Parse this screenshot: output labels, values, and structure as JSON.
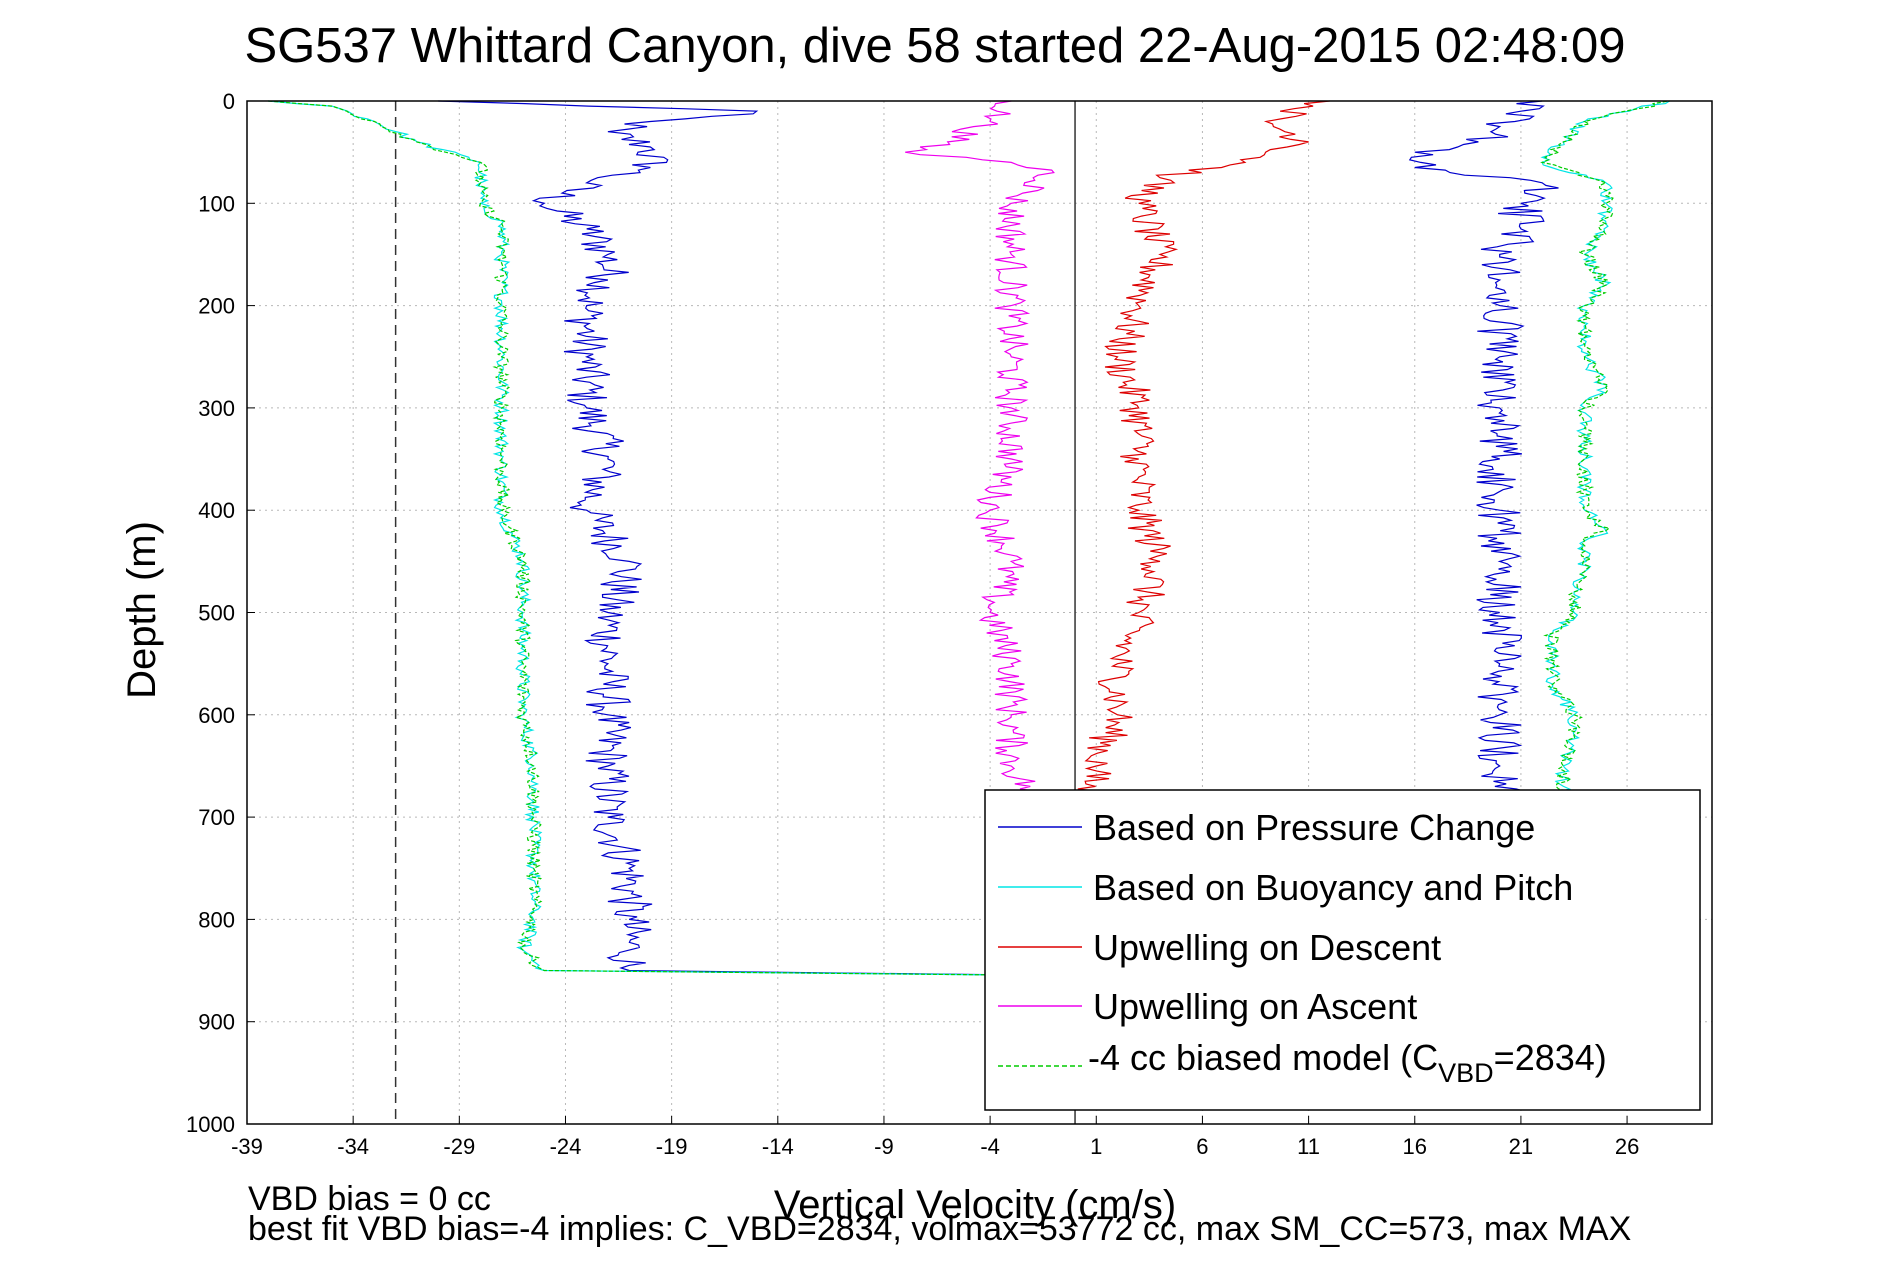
{
  "chart_data": {
    "type": "line",
    "title": "SG537 Whittard Canyon, dive 58 started 22-Aug-2015 02:48:09",
    "xlabel": "Vertical Velocity (cm/s)",
    "ylabel": "Depth (m)",
    "xlim": [
      -39,
      30
    ],
    "ylim": [
      0,
      1000
    ],
    "y_reversed": true,
    "x_ticks": [
      -39,
      -34,
      -29,
      -24,
      -19,
      -14,
      -9,
      -4,
      1,
      6,
      11,
      16,
      21,
      26
    ],
    "y_ticks": [
      0,
      100,
      200,
      300,
      400,
      500,
      600,
      700,
      800,
      900,
      1000
    ],
    "grid": true,
    "legend_position": "bottom-right",
    "reference_lines": {
      "dashed_x": -32,
      "solid_x": 0
    },
    "series": [
      {
        "name": "Based on Pressure Change",
        "color": "#0000cc",
        "depth": [
          0,
          10,
          20,
          30,
          45,
          65,
          80,
          100,
          125,
          150,
          175,
          200,
          250,
          300,
          350,
          400,
          450,
          500,
          550,
          600,
          650,
          700,
          750,
          800,
          830,
          850,
          855,
          850,
          800,
          700,
          650,
          600,
          550,
          500,
          450,
          400,
          350,
          300,
          250,
          200,
          175,
          150,
          125,
          100,
          80,
          65,
          50,
          40,
          25,
          10,
          0
        ],
        "v": [
          -30,
          -15,
          -20,
          -22,
          -20,
          -20,
          -23,
          -25,
          -23,
          -22,
          -22,
          -23,
          -23,
          -23,
          -22,
          -23,
          -21,
          -22,
          -22,
          -22,
          -22,
          -22,
          -21,
          -21,
          -21,
          -21,
          0,
          21,
          21,
          21,
          20,
          20,
          20,
          20,
          20,
          20,
          20,
          20,
          20,
          20,
          20,
          20,
          21,
          21,
          22,
          16,
          16,
          19,
          20,
          21,
          22
        ]
      },
      {
        "name": "Based on Buoyancy and Pitch",
        "color": "#00e5e5",
        "depth": [
          0,
          5,
          20,
          40,
          60,
          80,
          100,
          120,
          150,
          200,
          250,
          300,
          350,
          400,
          450,
          500,
          550,
          600,
          650,
          700,
          750,
          800,
          830,
          850,
          855,
          850,
          800,
          750,
          700,
          650,
          620,
          600,
          570,
          550,
          520,
          500,
          480,
          460,
          430,
          420,
          400,
          380,
          350,
          320,
          300,
          280,
          250,
          200,
          180,
          150,
          120,
          100,
          80,
          60,
          40,
          20,
          0
        ],
        "v": [
          -38,
          -35,
          -33,
          -31,
          -28,
          -28,
          -28,
          -27,
          -27,
          -27,
          -27,
          -27,
          -27,
          -27,
          -26,
          -26,
          -26,
          -26,
          -25.5,
          -25.5,
          -25.5,
          -25.5,
          -26,
          -25,
          0,
          23,
          23,
          23,
          23,
          23,
          23.5,
          23.5,
          22.5,
          22.5,
          22.5,
          23.5,
          23.5,
          24,
          24,
          25,
          24,
          24,
          24,
          24,
          24,
          25,
          24,
          24,
          25,
          24,
          25,
          25,
          25,
          22,
          23,
          24,
          28
        ]
      },
      {
        "name": "Upwelling on Descent",
        "color": "#dd0000",
        "depth": [
          0,
          20,
          40,
          60,
          75,
          100,
          150,
          200,
          250,
          300,
          350,
          400,
          450,
          500,
          550,
          600,
          650,
          680
        ],
        "v": [
          12,
          9,
          11,
          8,
          4,
          3,
          4,
          3,
          2,
          3,
          3,
          3,
          4,
          3,
          2,
          2,
          1,
          0.5
        ]
      },
      {
        "name": "Upwelling on Ascent",
        "color": "#ee00ee",
        "depth": [
          0,
          20,
          40,
          50,
          60,
          70,
          100,
          150,
          200,
          250,
          300,
          350,
          400,
          450,
          500,
          550,
          600,
          650,
          680
        ],
        "v": [
          -3,
          -4,
          -6,
          -8,
          -3,
          -1,
          -3,
          -3,
          -3,
          -3,
          -3,
          -3,
          -4,
          -3,
          -4,
          -3,
          -3,
          -3,
          -2
        ]
      },
      {
        "name": "-4 cc biased model (C_VBD=2834)",
        "color": "#00cc00",
        "dashed": true,
        "depth": [
          0,
          5,
          20,
          40,
          60,
          80,
          100,
          120,
          150,
          200,
          250,
          300,
          350,
          400,
          450,
          500,
          550,
          600,
          650,
          700,
          750,
          800,
          830,
          850,
          855,
          850,
          800,
          750,
          700,
          650,
          620,
          600,
          570,
          550,
          520,
          500,
          480,
          460,
          430,
          420,
          400,
          380,
          350,
          320,
          300,
          280,
          250,
          200,
          180,
          150,
          120,
          100,
          80,
          60,
          40,
          20,
          0
        ],
        "v": [
          -38,
          -35,
          -33,
          -31,
          -28,
          -28,
          -28,
          -27,
          -27,
          -27,
          -27,
          -27,
          -27,
          -27,
          -26,
          -26,
          -26,
          -26,
          -25.5,
          -25.5,
          -25.5,
          -25.5,
          -26,
          -25,
          0,
          23,
          23,
          23,
          23,
          23,
          23.5,
          23.5,
          22.5,
          22.5,
          22.5,
          23.5,
          23.5,
          24,
          24,
          25,
          24,
          24,
          24,
          24,
          24,
          25,
          24,
          24,
          25,
          24,
          25,
          25,
          25,
          22,
          23,
          24,
          28
        ]
      }
    ],
    "legend_entries": [
      {
        "text": "Based on Pressure Change"
      },
      {
        "text": "Based on Buoyancy and Pitch"
      },
      {
        "text": "Upwelling on Descent"
      },
      {
        "text": "Upwelling on Ascent"
      },
      {
        "text_before": "-4 cc biased model (C",
        "text_sub": "VBD",
        "text_after": "=2834)"
      }
    ],
    "footnotes": [
      "VBD bias = 0 cc",
      "best fit VBD bias=-4 implies: C_VBD=2834, volmax=53772 cc, max SM_CC=573, max MAX"
    ]
  }
}
